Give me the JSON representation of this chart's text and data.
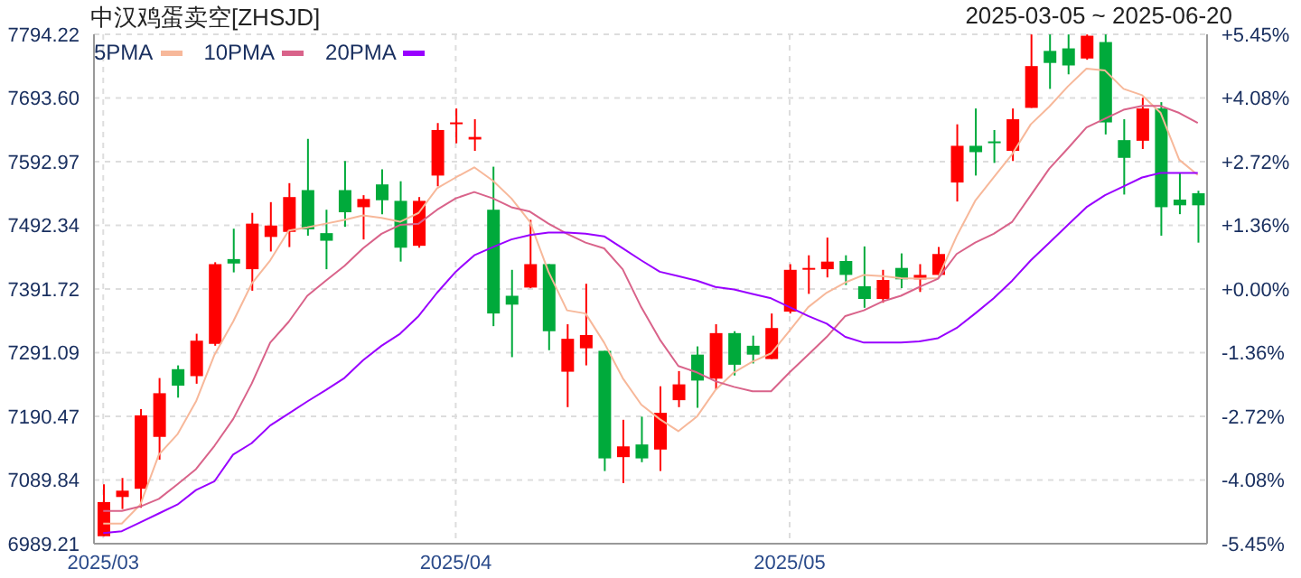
{
  "chart_data": {
    "type": "candlestick",
    "title": "中汉鸡蛋卖空[ZHSJD]",
    "subtitle": "2025-03-05 ~ 2025-06-20",
    "categories": [
      "2025/03",
      null,
      null,
      null,
      null,
      null,
      null,
      null,
      null,
      null,
      null,
      null,
      null,
      null,
      null,
      null,
      null,
      null,
      null,
      "2025/04",
      null,
      null,
      null,
      null,
      null,
      null,
      null,
      null,
      null,
      null,
      null,
      null,
      null,
      null,
      null,
      null,
      null,
      "2025/05",
      null,
      null,
      null,
      null,
      null,
      null,
      null,
      null,
      null,
      null,
      null,
      null,
      null,
      null,
      null,
      null,
      null,
      null,
      null,
      null,
      null,
      null
    ],
    "ohlc": [
      [
        7001,
        7083,
        7001,
        7055
      ],
      [
        7063,
        7093,
        7044,
        7073
      ],
      [
        7076,
        7202,
        7046,
        7192
      ],
      [
        7158,
        7251,
        7122,
        7227
      ],
      [
        7265,
        7271,
        7220,
        7239
      ],
      [
        7254,
        7321,
        7242,
        7310
      ],
      [
        7305,
        7434,
        7302,
        7431
      ],
      [
        7439,
        7487,
        7418,
        7432
      ],
      [
        7423,
        7512,
        7389,
        7495
      ],
      [
        7474,
        7529,
        7451,
        7492
      ],
      [
        7482,
        7559,
        7458,
        7537
      ],
      [
        7548,
        7629,
        7476,
        7486
      ],
      [
        7480,
        7517,
        7423,
        7468
      ],
      [
        7548,
        7594,
        7490,
        7513
      ],
      [
        7521,
        7540,
        7470,
        7534
      ],
      [
        7557,
        7581,
        7510,
        7532
      ],
      [
        7531,
        7562,
        7435,
        7457
      ],
      [
        7460,
        7537,
        7457,
        7531
      ],
      [
        7571,
        7654,
        7554,
        7643
      ],
      [
        7653,
        7677,
        7622,
        7655
      ],
      [
        7628,
        7660,
        7610,
        7632
      ],
      [
        7517,
        7585,
        7333,
        7353
      ],
      [
        7381,
        7422,
        7284,
        7367
      ],
      [
        7394,
        7501,
        7393,
        7431
      ],
      [
        7431,
        7431,
        7295,
        7325
      ],
      [
        7261,
        7336,
        7205,
        7313
      ],
      [
        7298,
        7400,
        7271,
        7319
      ],
      [
        7294,
        7294,
        7104,
        7124
      ],
      [
        7126,
        7185,
        7085,
        7143
      ],
      [
        7146,
        7190,
        7118,
        7124
      ],
      [
        7138,
        7238,
        7104,
        7196
      ],
      [
        7216,
        7262,
        7205,
        7241
      ],
      [
        7288,
        7301,
        7204,
        7247
      ],
      [
        7250,
        7336,
        7233,
        7322
      ],
      [
        7322,
        7325,
        7255,
        7272
      ],
      [
        7302,
        7318,
        7274,
        7288
      ],
      [
        7281,
        7353,
        7281,
        7330
      ],
      [
        7356,
        7431,
        7353,
        7422
      ],
      [
        7424,
        7445,
        7384,
        7425
      ],
      [
        7423,
        7473,
        7410,
        7435
      ],
      [
        7436,
        7445,
        7398,
        7414
      ],
      [
        7396,
        7459,
        7362,
        7376
      ],
      [
        7376,
        7422,
        7370,
        7406
      ],
      [
        7425,
        7448,
        7393,
        7407
      ],
      [
        7407,
        7431,
        7387,
        7414
      ],
      [
        7414,
        7458,
        7414,
        7447
      ],
      [
        7560,
        7652,
        7530,
        7618
      ],
      [
        7618,
        7677,
        7571,
        7608
      ],
      [
        7625,
        7643,
        7591,
        7623
      ],
      [
        7610,
        7677,
        7594,
        7660
      ],
      [
        7678,
        7794,
        7678,
        7744
      ],
      [
        7768,
        7794,
        7708,
        7749
      ],
      [
        7772,
        7794,
        7731,
        7745
      ],
      [
        7756,
        7794,
        7754,
        7792
      ],
      [
        7782,
        7794,
        7636,
        7655
      ],
      [
        7627,
        7660,
        7541,
        7599
      ],
      [
        7626,
        7694,
        7613,
        7677
      ],
      [
        7677,
        7687,
        7476,
        7521
      ],
      [
        7533,
        7575,
        7510,
        7524
      ],
      [
        7543,
        7547,
        7465,
        7524
      ]
    ],
    "colors": [
      "#ff0000",
      "#ff0000",
      "#ff0000",
      "#ff0000",
      "#00aa3b",
      "#ff0000",
      "#ff0000",
      "#00aa3b",
      "#ff0000",
      "#ff0000",
      "#ff0000",
      "#00aa3b",
      "#00aa3b",
      "#00aa3b",
      "#ff0000",
      "#00aa3b",
      "#00aa3b",
      "#ff0000",
      "#ff0000",
      "#ff0000",
      "#ff0000",
      "#00aa3b",
      "#00aa3b",
      "#ff0000",
      "#00aa3b",
      "#ff0000",
      "#ff0000",
      "#00aa3b",
      "#ff0000",
      "#00aa3b",
      "#ff0000",
      "#ff0000",
      "#00aa3b",
      "#ff0000",
      "#00aa3b",
      "#00aa3b",
      "#ff0000",
      "#ff0000",
      "#ff0000",
      "#ff0000",
      "#00aa3b",
      "#00aa3b",
      "#ff0000",
      "#00aa3b",
      "#ff0000",
      "#ff0000",
      "#ff0000",
      "#00aa3b",
      "#00aa3b",
      "#ff0000",
      "#ff0000",
      "#00aa3b",
      "#00aa3b",
      "#ff0000",
      "#00aa3b",
      "#00aa3b",
      "#ff0000",
      "#00aa3b",
      "#00aa3b",
      "#00aa3b"
    ],
    "series": [
      {
        "name": "5PMA",
        "type": "line",
        "color": "#f7b89a",
        "values": [
          7021,
          7021,
          7051,
          7130,
          7162,
          7214,
          7288,
          7340,
          7400,
          7437,
          7484,
          7489,
          7495,
          7501,
          7508,
          7504,
          7498,
          7512,
          7551,
          7568,
          7584,
          7563,
          7535,
          7498,
          7419,
          7358,
          7353,
          7307,
          7251,
          7209,
          7186,
          7167,
          7190,
          7232,
          7260,
          7277,
          7290,
          7326,
          7363,
          7386,
          7402,
          7414,
          7412,
          7409,
          7408,
          7409,
          7475,
          7531,
          7568,
          7605,
          7652,
          7680,
          7712,
          7740,
          7737,
          7708,
          7698,
          7670,
          7596,
          7572
        ]
      },
      {
        "name": "10PMA",
        "type": "line",
        "color": "#d9638a",
        "values": [
          7041,
          7041,
          7048,
          7060,
          7083,
          7107,
          7144,
          7186,
          7242,
          7307,
          7340,
          7381,
          7405,
          7428,
          7456,
          7479,
          7493,
          7495,
          7517,
          7535,
          7545,
          7535,
          7521,
          7514,
          7495,
          7479,
          7465,
          7456,
          7423,
          7363,
          7312,
          7270,
          7260,
          7246,
          7237,
          7230,
          7230,
          7260,
          7288,
          7316,
          7349,
          7358,
          7372,
          7381,
          7395,
          7408,
          7447,
          7465,
          7479,
          7498,
          7540,
          7582,
          7614,
          7647,
          7661,
          7675,
          7681,
          7681,
          7670,
          7654
        ]
      },
      {
        "name": "20PMA",
        "type": "line",
        "color": "#9900ff",
        "values": [
          7006,
          7009,
          7023,
          7037,
          7051,
          7074,
          7088,
          7130,
          7148,
          7176,
          7195,
          7214,
          7232,
          7251,
          7279,
          7302,
          7321,
          7349,
          7386,
          7419,
          7445,
          7458,
          7470,
          7477,
          7481,
          7481,
          7479,
          7475,
          7456,
          7437,
          7419,
          7412,
          7405,
          7395,
          7391,
          7384,
          7377,
          7363,
          7349,
          7337,
          7316,
          7307,
          7307,
          7307,
          7309,
          7314,
          7330,
          7353,
          7377,
          7405,
          7437,
          7465,
          7493,
          7521,
          7540,
          7554,
          7568,
          7575,
          7575,
          7575
        ]
      }
    ],
    "ylim": [
      6989.21,
      7794.22
    ],
    "yticks": [
      6989.21,
      7089.84,
      7190.47,
      7291.09,
      7391.72,
      7492.34,
      7592.97,
      {
        "value": 7693.6,
        "label": "7693.60"
      },
      7794.22
    ],
    "y2lim": [
      -5.4454,
      5.4453
    ],
    "y2ticks": [
      {
        "value": -5.4454,
        "label": "-5.45%"
      },
      {
        "value": -4.084,
        "label": "-4.08%"
      },
      {
        "value": -2.7226,
        "label": "-2.72%"
      },
      {
        "value": -1.3614,
        "label": "-1.36%"
      },
      {
        "value": 0,
        "label": "+0.00%"
      },
      {
        "value": 1.3613,
        "label": "+1.36%"
      },
      {
        "value": 2.7226,
        "label": "+2.72%"
      },
      {
        "value": 4.084,
        "label": "+4.08%"
      },
      {
        "value": 5.4453,
        "label": "+5.45%"
      }
    ],
    "grid": true,
    "legend": "top left"
  }
}
